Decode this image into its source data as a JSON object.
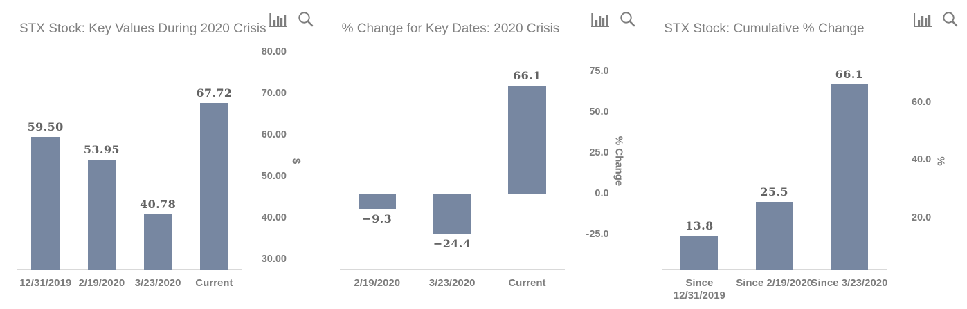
{
  "colors": {
    "bar": "#7787A1",
    "title_text": "#808080",
    "axis_text": "#7C7C7C",
    "value_text": "#636363",
    "icon": "#7E7E7E",
    "axis_line": "#D9D9D9",
    "background": "#FFFFFF"
  },
  "icons": [
    "bar-chart-icon",
    "zoom-icon"
  ],
  "chart_data": [
    {
      "type": "bar",
      "title": "STX Stock: Key Values During 2020 Crisis",
      "categories": [
        "12/31/2019",
        "2/19/2020",
        "3/23/2020",
        "Current"
      ],
      "values": [
        59.5,
        53.95,
        40.78,
        67.72
      ],
      "value_labels": [
        "59.50",
        "53.95",
        "40.78",
        "67.72"
      ],
      "xlabel": "",
      "ylabel": "$",
      "yticks": [
        {
          "value": 80,
          "label": "80.00"
        },
        {
          "value": 70,
          "label": "70.00"
        },
        {
          "value": 60,
          "label": "60.00"
        },
        {
          "value": 50,
          "label": "50.00"
        },
        {
          "value": 40,
          "label": "40.00"
        },
        {
          "value": 30,
          "label": "30.00"
        }
      ],
      "ylim": [
        27.5,
        82.5
      ],
      "grid": false,
      "legend": false
    },
    {
      "type": "bar",
      "title": "% Change for Key Dates: 2020 Crisis",
      "categories": [
        "2/19/2020",
        "3/23/2020",
        "Current"
      ],
      "values": [
        -9.3,
        -24.4,
        66.1
      ],
      "value_labels": [
        "−9.3",
        "−24.4",
        "66.1"
      ],
      "xlabel": "",
      "ylabel": "% Change",
      "yticks": [
        {
          "value": 75,
          "label": "75.0"
        },
        {
          "value": 50,
          "label": "50.0"
        },
        {
          "value": 25,
          "label": "25.0"
        },
        {
          "value": 0,
          "label": "0.0"
        },
        {
          "value": -25,
          "label": "-25.0"
        }
      ],
      "ylim": [
        -46.6,
        93.2
      ],
      "grid": false,
      "legend": false
    },
    {
      "type": "bar",
      "title": "STX Stock: Cumulative % Change",
      "categories": [
        "Since\n12/31/2019",
        "Since 2/19/2020",
        "Since 3/23/2020"
      ],
      "values": [
        13.8,
        25.5,
        66.1
      ],
      "value_labels": [
        "13.8",
        "25.5",
        "66.1"
      ],
      "xlabel": "",
      "ylabel": "%",
      "yticks": [
        {
          "value": 60,
          "label": "60.0"
        },
        {
          "value": 40,
          "label": "40.0"
        },
        {
          "value": 20,
          "label": "20.0"
        }
      ],
      "ylim": [
        2,
        81
      ],
      "grid": false,
      "legend": false
    }
  ]
}
